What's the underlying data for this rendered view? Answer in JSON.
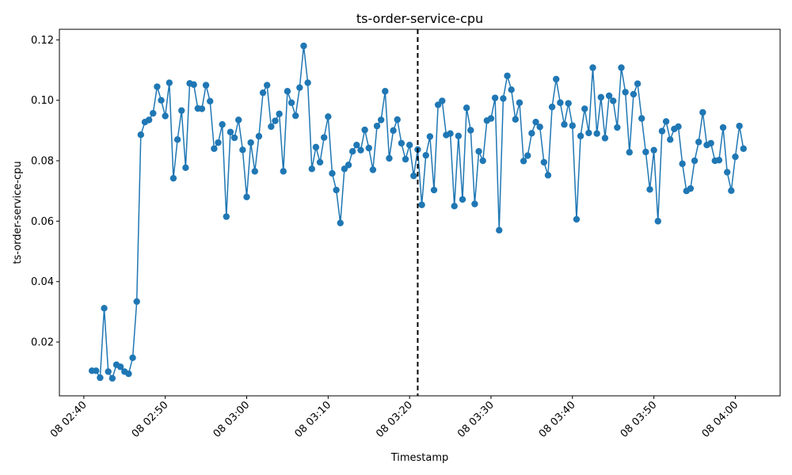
{
  "chart_data": {
    "type": "line",
    "title": "ts-order-service-cpu",
    "xlabel": "Timestamp",
    "ylabel": "ts-order-service-cpu",
    "x_axis": "time (minutes after 08 02:40)",
    "x_ticks": [
      {
        "value": 0,
        "label": "08 02:40"
      },
      {
        "value": 10,
        "label": "08 02:50"
      },
      {
        "value": 20,
        "label": "08 03:00"
      },
      {
        "value": 30,
        "label": "08 03:10"
      },
      {
        "value": 40,
        "label": "08 03:20"
      },
      {
        "value": 50,
        "label": "08 03:30"
      },
      {
        "value": 60,
        "label": "08 03:40"
      },
      {
        "value": 70,
        "label": "08 03:50"
      },
      {
        "value": 80,
        "label": "08 04:00"
      }
    ],
    "y_ticks": [
      {
        "value": 0.02,
        "label": "0.02"
      },
      {
        "value": 0.04,
        "label": "0.04"
      },
      {
        "value": 0.06,
        "label": "0.06"
      },
      {
        "value": 0.08,
        "label": "0.08"
      },
      {
        "value": 0.1,
        "label": "0.10"
      },
      {
        "value": 0.12,
        "label": "0.12"
      }
    ],
    "xlim": [
      -3.0,
      85.5
    ],
    "ylim": [
      0.0022,
      0.1235
    ],
    "grid": false,
    "marker": "circle",
    "color": "#1f77b4",
    "vline": {
      "x": 41.0,
      "style": "dashed",
      "color": "#000000"
    },
    "series": [
      {
        "name": "ts-order-service-cpu",
        "y": [
          0.0105,
          0.0105,
          0.0082,
          0.0312,
          0.0102,
          0.008,
          0.0125,
          0.0118,
          0.0102,
          0.0095,
          0.0148,
          0.0334,
          0.0886,
          0.0928,
          0.0935,
          0.0957,
          0.1045,
          0.1,
          0.0948,
          0.1058,
          0.0742,
          0.087,
          0.0966,
          0.0777,
          0.1056,
          0.1052,
          0.0973,
          0.0972,
          0.105,
          0.0997,
          0.084,
          0.086,
          0.092,
          0.0615,
          0.0895,
          0.0876,
          0.0935,
          0.0836,
          0.068,
          0.086,
          0.0765,
          0.0881,
          0.1025,
          0.105,
          0.0913,
          0.0932,
          0.0955,
          0.0765,
          0.103,
          0.0992,
          0.0949,
          0.1042,
          0.118,
          0.1058,
          0.0773,
          0.0845,
          0.0795,
          0.0877,
          0.0946,
          0.0758,
          0.0703,
          0.0594,
          0.0773,
          0.0786,
          0.0831,
          0.0852,
          0.0835,
          0.0902,
          0.0842,
          0.077,
          0.0915,
          0.0935,
          0.103,
          0.0808,
          0.09,
          0.0936,
          0.0858,
          0.0805,
          0.0852,
          0.075,
          0.0837,
          0.0654,
          0.0818,
          0.088,
          0.0703,
          0.0985,
          0.0998,
          0.0885,
          0.089,
          0.065,
          0.0882,
          0.0672,
          0.0975,
          0.0901,
          0.0657,
          0.0831,
          0.08,
          0.0933,
          0.094,
          0.1008,
          0.057,
          0.1006,
          0.1081,
          0.1035,
          0.0937,
          0.0992,
          0.0799,
          0.0817,
          0.0891,
          0.0928,
          0.0912,
          0.0795,
          0.0752,
          0.0978,
          0.107,
          0.0992,
          0.092,
          0.099,
          0.0916,
          0.0606,
          0.0882,
          0.0972,
          0.0892,
          0.1108,
          0.089,
          0.101,
          0.0875,
          0.1015,
          0.0998,
          0.091,
          0.1108,
          0.1027,
          0.0828,
          0.102,
          0.1055,
          0.094,
          0.0829,
          0.0705,
          0.0835,
          0.06,
          0.0898,
          0.093,
          0.087,
          0.0905,
          0.0913,
          0.079,
          0.07,
          0.0708,
          0.08,
          0.0862,
          0.096,
          0.0852,
          0.0858,
          0.08,
          0.0802,
          0.091,
          0.0762,
          0.0701,
          0.0813,
          0.0915,
          0.084
        ]
      }
    ]
  }
}
